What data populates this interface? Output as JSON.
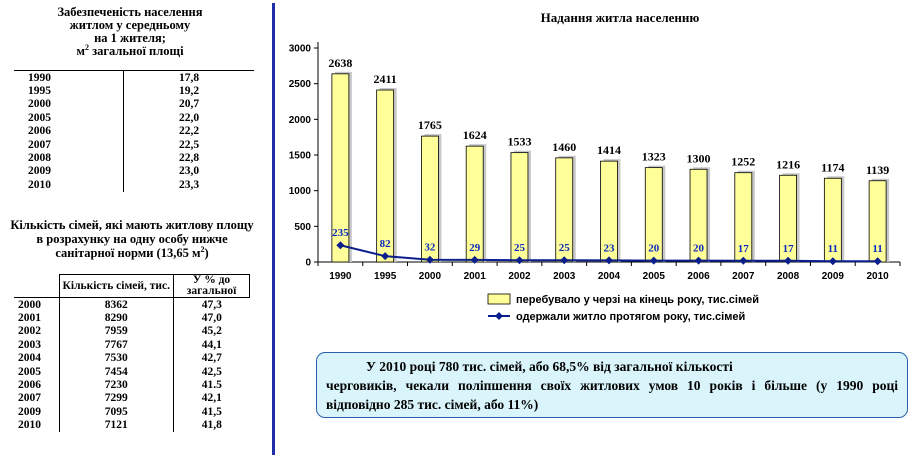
{
  "table1": {
    "title_lines": [
      "Забезпеченість населення",
      "житлом у середньому",
      "на 1 жителя;"
    ],
    "title_unit_prefix": "м",
    "title_unit_sup": "2",
    "title_unit_suffix": " загальної площі",
    "rows": [
      {
        "year": "1990",
        "value": "17,8"
      },
      {
        "year": "1995",
        "value": "19,2"
      },
      {
        "year": "2000",
        "value": "20,7"
      },
      {
        "year": "2005",
        "value": "22,0"
      },
      {
        "year": "2006",
        "value": "22,2"
      },
      {
        "year": "2007",
        "value": "22,5"
      },
      {
        "year": "2008",
        "value": "22,8"
      },
      {
        "year": "2009",
        "value": "23,0"
      },
      {
        "year": "2010",
        "value": "23,3"
      }
    ]
  },
  "table2": {
    "title_main": "Кількість сімей, які мають житлову площу в розрахунку на одну особу нижче санітарної норми (13,65 м",
    "title_sup": "2",
    "title_end": ")",
    "col_count": "Кількість сімей, тис.",
    "col_percent": "У % до загальної",
    "rows": [
      {
        "year": "2000",
        "count": "8362",
        "percent": "47,3"
      },
      {
        "year": "2001",
        "count": "8290",
        "percent": "47,0"
      },
      {
        "year": "2002",
        "count": "7959",
        "percent": "45,2"
      },
      {
        "year": "2003",
        "count": "7767",
        "percent": "44,1"
      },
      {
        "year": "2004",
        "count": "7530",
        "percent": "42,7"
      },
      {
        "year": "2005",
        "count": "7454",
        "percent": "42,5"
      },
      {
        "year": "2006",
        "count": "7230",
        "percent": "41.5"
      },
      {
        "year": "2007",
        "count": "7299",
        "percent": "42,1"
      },
      {
        "year": "2009",
        "count": "7095",
        "percent": "41,5"
      },
      {
        "year": "2010",
        "count": "7121",
        "percent": "41,8"
      }
    ]
  },
  "chart_data": {
    "type": "bar",
    "title": "Надання житла населенню",
    "categories": [
      "1990",
      "1995",
      "2000",
      "2001",
      "2002",
      "2003",
      "2004",
      "2005",
      "2006",
      "2007",
      "2008",
      "2009",
      "2010"
    ],
    "ylim": [
      0,
      3000
    ],
    "yticks": [
      0,
      500,
      1000,
      1500,
      2000,
      2500,
      3000
    ],
    "series": [
      {
        "name": "перебувало у черзі на кінець року, тис.сімей",
        "type": "bar",
        "values": [
          2638,
          2411,
          1765,
          1624,
          1533,
          1460,
          1414,
          1323,
          1300,
          1252,
          1216,
          1174,
          1139
        ],
        "color": "#ffff99"
      },
      {
        "name": "одержали житло протягом року, тис.сімей",
        "type": "line",
        "values": [
          235,
          82,
          32,
          29,
          25,
          25,
          23,
          20,
          20,
          17,
          17,
          11,
          11
        ],
        "color": "#0b1f8c"
      }
    ],
    "legend": "bottom",
    "grid": false
  },
  "note": {
    "text_first": "У 2010 році 780 тис. сімей, або 68,5% від загальної кількості",
    "text_rest": "черговиків, чекали поліпшення своїх житлових умов 10 років і більше (у 1990 році відповідно 285 тис. сімей, або 11%)"
  }
}
